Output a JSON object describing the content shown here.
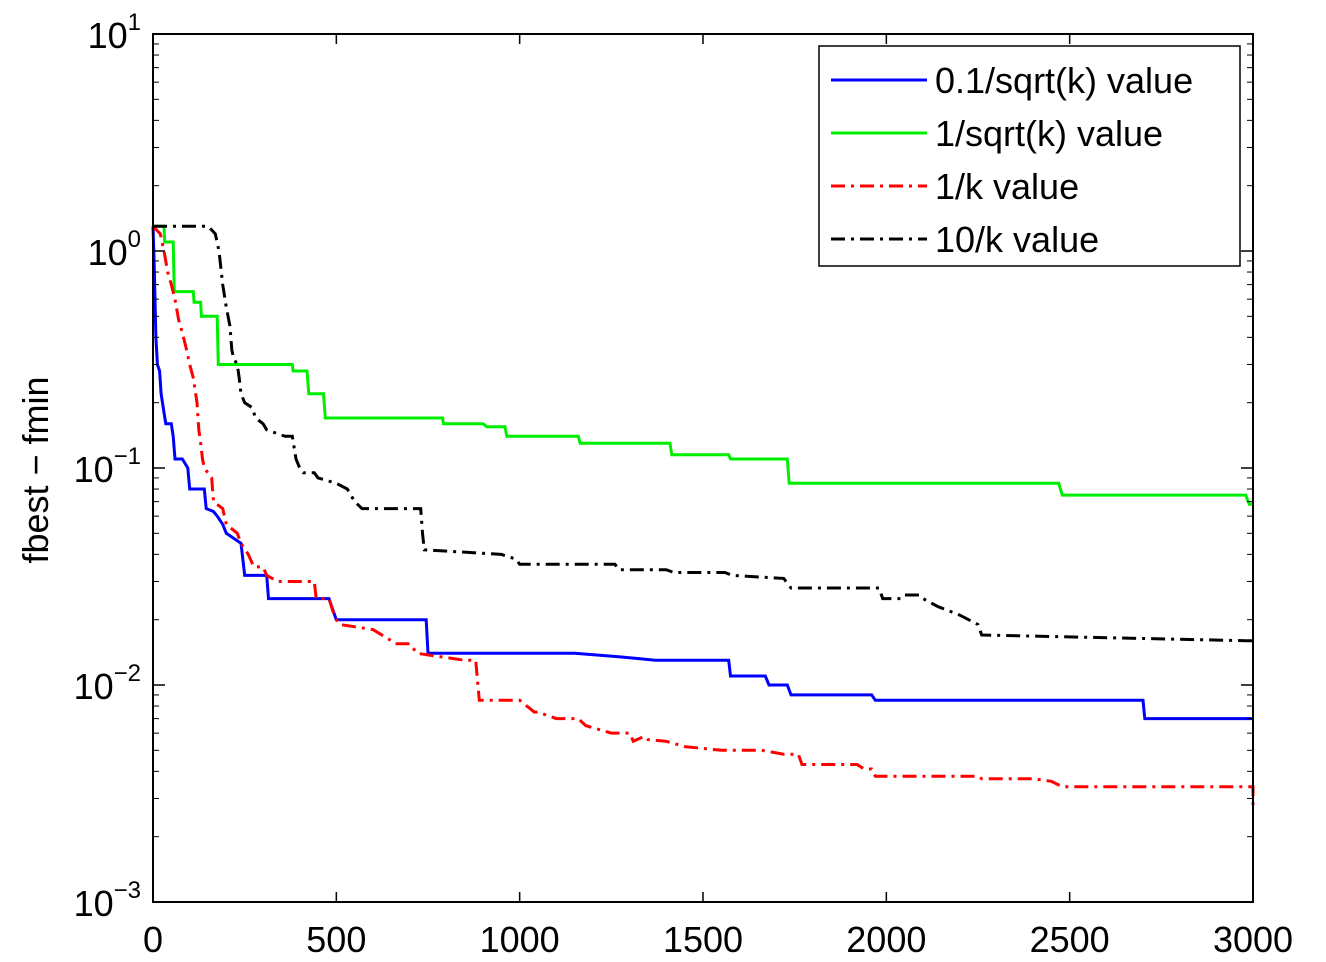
{
  "chart_data": {
    "type": "line",
    "title": "",
    "xlabel": "",
    "ylabel": "fbest − fmin",
    "xlim": [
      0,
      3000
    ],
    "ylim": [
      0.001,
      10
    ],
    "yscale": "log",
    "grid": false,
    "legend_position": "top-right",
    "x_ticks": [
      0,
      500,
      1000,
      1500,
      2000,
      2500,
      3000
    ],
    "x_tick_labels": [
      "0",
      "500",
      "1000",
      "1500",
      "2000",
      "2500",
      "3000"
    ],
    "y_ticks": [
      {
        "value": 10,
        "base": "10",
        "exp": "1"
      },
      {
        "value": 1,
        "base": "10",
        "exp": "0"
      },
      {
        "value": 0.1,
        "base": "10",
        "exp": "−1"
      },
      {
        "value": 0.01,
        "base": "10",
        "exp": "−2"
      },
      {
        "value": 0.001,
        "base": "10",
        "exp": "−3"
      }
    ],
    "series": [
      {
        "name": "0.1/sqrt(k) value",
        "color": "#0000ff",
        "dash": "solid",
        "points": [
          [
            0,
            1.3
          ],
          [
            3,
            0.9
          ],
          [
            6,
            0.55
          ],
          [
            8,
            0.4
          ],
          [
            12,
            0.3
          ],
          [
            18,
            0.28
          ],
          [
            22,
            0.22
          ],
          [
            30,
            0.18
          ],
          [
            35,
            0.16
          ],
          [
            50,
            0.16
          ],
          [
            55,
            0.14
          ],
          [
            60,
            0.11
          ],
          [
            80,
            0.11
          ],
          [
            95,
            0.1
          ],
          [
            100,
            0.08
          ],
          [
            140,
            0.08
          ],
          [
            145,
            0.065
          ],
          [
            165,
            0.063
          ],
          [
            175,
            0.06
          ],
          [
            190,
            0.055
          ],
          [
            200,
            0.05
          ],
          [
            240,
            0.045
          ],
          [
            250,
            0.032
          ],
          [
            310,
            0.032
          ],
          [
            315,
            0.025
          ],
          [
            480,
            0.025
          ],
          [
            500,
            0.02
          ],
          [
            745,
            0.02
          ],
          [
            750,
            0.014
          ],
          [
            1150,
            0.014
          ],
          [
            1270,
            0.0135
          ],
          [
            1370,
            0.013
          ],
          [
            1570,
            0.013
          ],
          [
            1575,
            0.011
          ],
          [
            1670,
            0.011
          ],
          [
            1680,
            0.01
          ],
          [
            1730,
            0.01
          ],
          [
            1740,
            0.009
          ],
          [
            1960,
            0.009
          ],
          [
            1970,
            0.0085
          ],
          [
            2700,
            0.0085
          ],
          [
            2705,
            0.007
          ],
          [
            3000,
            0.007
          ]
        ]
      },
      {
        "name": "1/sqrt(k) value",
        "color": "#00ee00",
        "dash": "solid",
        "points": [
          [
            0,
            1.3
          ],
          [
            30,
            1.3
          ],
          [
            32,
            1.1
          ],
          [
            55,
            1.1
          ],
          [
            58,
            0.65
          ],
          [
            110,
            0.65
          ],
          [
            112,
            0.58
          ],
          [
            130,
            0.58
          ],
          [
            132,
            0.5
          ],
          [
            175,
            0.5
          ],
          [
            178,
            0.3
          ],
          [
            380,
            0.3
          ],
          [
            382,
            0.28
          ],
          [
            420,
            0.28
          ],
          [
            425,
            0.22
          ],
          [
            465,
            0.22
          ],
          [
            470,
            0.17
          ],
          [
            790,
            0.17
          ],
          [
            792,
            0.16
          ],
          [
            900,
            0.16
          ],
          [
            910,
            0.155
          ],
          [
            960,
            0.155
          ],
          [
            965,
            0.14
          ],
          [
            1160,
            0.14
          ],
          [
            1165,
            0.13
          ],
          [
            1410,
            0.13
          ],
          [
            1415,
            0.115
          ],
          [
            1570,
            0.115
          ],
          [
            1575,
            0.11
          ],
          [
            1730,
            0.11
          ],
          [
            1735,
            0.085
          ],
          [
            2470,
            0.085
          ],
          [
            2480,
            0.075
          ],
          [
            2980,
            0.075
          ],
          [
            2990,
            0.068
          ],
          [
            3000,
            0.068
          ]
        ]
      },
      {
        "name": "1/k value",
        "color": "#ff0000",
        "dash": "dashdot",
        "points": [
          [
            0,
            1.3
          ],
          [
            20,
            1.2
          ],
          [
            30,
            1.0
          ],
          [
            40,
            0.8
          ],
          [
            50,
            0.7
          ],
          [
            60,
            0.6
          ],
          [
            70,
            0.48
          ],
          [
            80,
            0.42
          ],
          [
            90,
            0.36
          ],
          [
            100,
            0.3
          ],
          [
            110,
            0.26
          ],
          [
            120,
            0.2
          ],
          [
            125,
            0.15
          ],
          [
            130,
            0.13
          ],
          [
            135,
            0.11
          ],
          [
            140,
            0.1
          ],
          [
            160,
            0.09
          ],
          [
            165,
            0.07
          ],
          [
            190,
            0.065
          ],
          [
            200,
            0.055
          ],
          [
            230,
            0.05
          ],
          [
            240,
            0.045
          ],
          [
            260,
            0.04
          ],
          [
            275,
            0.035
          ],
          [
            300,
            0.035
          ],
          [
            310,
            0.032
          ],
          [
            340,
            0.03
          ],
          [
            440,
            0.03
          ],
          [
            445,
            0.025
          ],
          [
            480,
            0.025
          ],
          [
            490,
            0.022
          ],
          [
            500,
            0.02
          ],
          [
            510,
            0.019
          ],
          [
            600,
            0.018
          ],
          [
            650,
            0.016
          ],
          [
            660,
            0.0155
          ],
          [
            700,
            0.0155
          ],
          [
            720,
            0.014
          ],
          [
            850,
            0.013
          ],
          [
            880,
            0.013
          ],
          [
            890,
            0.0085
          ],
          [
            1000,
            0.0085
          ],
          [
            1040,
            0.0075
          ],
          [
            1050,
            0.0075
          ],
          [
            1100,
            0.007
          ],
          [
            1160,
            0.007
          ],
          [
            1180,
            0.0065
          ],
          [
            1250,
            0.006
          ],
          [
            1300,
            0.006
          ],
          [
            1310,
            0.0055
          ],
          [
            1340,
            0.0058
          ],
          [
            1350,
            0.0056
          ],
          [
            1400,
            0.0055
          ],
          [
            1450,
            0.0052
          ],
          [
            1550,
            0.005
          ],
          [
            1660,
            0.005
          ],
          [
            1720,
            0.0048
          ],
          [
            1760,
            0.0048
          ],
          [
            1770,
            0.0043
          ],
          [
            1920,
            0.0043
          ],
          [
            1940,
            0.0041
          ],
          [
            1960,
            0.0041
          ],
          [
            1970,
            0.0038
          ],
          [
            2250,
            0.0038
          ],
          [
            2260,
            0.0037
          ],
          [
            2400,
            0.0037
          ],
          [
            2450,
            0.0036
          ],
          [
            2480,
            0.0034
          ],
          [
            3000,
            0.0034
          ],
          [
            3000,
            0.0028
          ]
        ]
      },
      {
        "name": "10/k value",
        "color": "#000000",
        "dash": "dashdot",
        "points": [
          [
            0,
            1.3
          ],
          [
            150,
            1.3
          ],
          [
            160,
            1.25
          ],
          [
            170,
            1.2
          ],
          [
            180,
            1.0
          ],
          [
            190,
            0.7
          ],
          [
            200,
            0.55
          ],
          [
            210,
            0.45
          ],
          [
            215,
            0.35
          ],
          [
            220,
            0.32
          ],
          [
            230,
            0.3
          ],
          [
            235,
            0.26
          ],
          [
            240,
            0.22
          ],
          [
            250,
            0.2
          ],
          [
            270,
            0.19
          ],
          [
            280,
            0.17
          ],
          [
            300,
            0.16
          ],
          [
            310,
            0.15
          ],
          [
            360,
            0.14
          ],
          [
            380,
            0.14
          ],
          [
            390,
            0.11
          ],
          [
            400,
            0.1
          ],
          [
            410,
            0.095
          ],
          [
            440,
            0.095
          ],
          [
            450,
            0.09
          ],
          [
            500,
            0.085
          ],
          [
            530,
            0.08
          ],
          [
            550,
            0.07
          ],
          [
            570,
            0.065
          ],
          [
            730,
            0.065
          ],
          [
            735,
            0.05
          ],
          [
            740,
            0.042
          ],
          [
            950,
            0.04
          ],
          [
            990,
            0.038
          ],
          [
            1000,
            0.036
          ],
          [
            1260,
            0.036
          ],
          [
            1270,
            0.034
          ],
          [
            1400,
            0.034
          ],
          [
            1420,
            0.033
          ],
          [
            1560,
            0.033
          ],
          [
            1580,
            0.032
          ],
          [
            1720,
            0.031
          ],
          [
            1740,
            0.028
          ],
          [
            1980,
            0.028
          ],
          [
            1990,
            0.025
          ],
          [
            2040,
            0.025
          ],
          [
            2050,
            0.026
          ],
          [
            2090,
            0.026
          ],
          [
            2100,
            0.025
          ],
          [
            2140,
            0.023
          ],
          [
            2200,
            0.021
          ],
          [
            2250,
            0.019
          ],
          [
            2260,
            0.017
          ],
          [
            2980,
            0.016
          ],
          [
            3000,
            0.016
          ]
        ]
      }
    ]
  }
}
